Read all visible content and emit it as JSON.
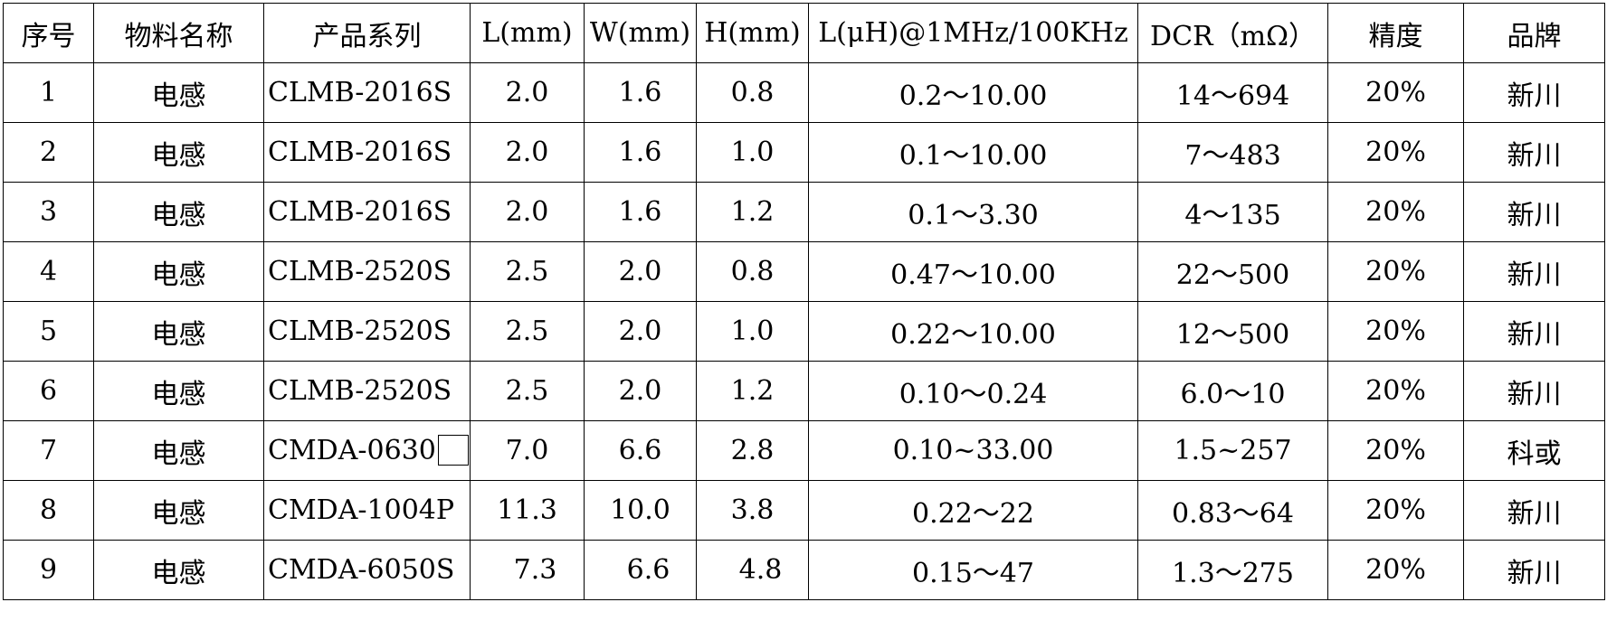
{
  "table": {
    "headers": [
      "序号",
      "物料名称",
      "产品系列",
      "L(mm)",
      "W(mm)",
      "H(mm)",
      "L(μH)@1MHz/100KHz",
      "DCR（mΩ）",
      "精度",
      "品牌"
    ],
    "rows": [
      [
        "1",
        "电感",
        "CLMB-2016S",
        "2.0",
        "1.6",
        "0.8",
        "0.2～10.00",
        "14～694",
        "20%",
        "新川"
      ],
      [
        "2",
        "电感",
        "CLMB-2016S",
        "2.0",
        "1.6",
        "1.0",
        "0.1～10.00",
        "7～483",
        "20%",
        "新川"
      ],
      [
        "3",
        "电感",
        "CLMB-2016S",
        "2.0",
        "1.6",
        "1.2",
        "0.1～3.30",
        "4～135",
        "20%",
        "新川"
      ],
      [
        "4",
        "电感",
        "CLMB-2520S",
        "2.5",
        "2.0",
        "0.8",
        "0.47～10.00",
        "22～500",
        "20%",
        "新川"
      ],
      [
        "5",
        "电感",
        "CLMB-2520S",
        "2.5",
        "2.0",
        "1.0",
        "0.22～10.00",
        "12～500",
        "20%",
        "新川"
      ],
      [
        "6",
        "电感",
        "CLMB-2520S",
        "2.5",
        "2.0",
        "1.2",
        "0.10～0.24",
        "6.0～10",
        "20%",
        "新川"
      ],
      [
        "7",
        "电感",
        "CMDA-0630",
        "7.0",
        "6.6",
        "2.8",
        "0.10~33.00",
        "1.5~257",
        "20%",
        "科或"
      ],
      [
        "8",
        "电感",
        "CMDA-1004P",
        "11.3",
        "10.0",
        "3.8",
        "0.22～22",
        "0.83～64",
        "20%",
        "新川"
      ],
      [
        "9",
        "电感",
        "CMDA-6050S",
        "7.3",
        "6.6",
        "4.8",
        "0.15～47",
        "1.3～275",
        "20%",
        "新川"
      ]
    ]
  }
}
